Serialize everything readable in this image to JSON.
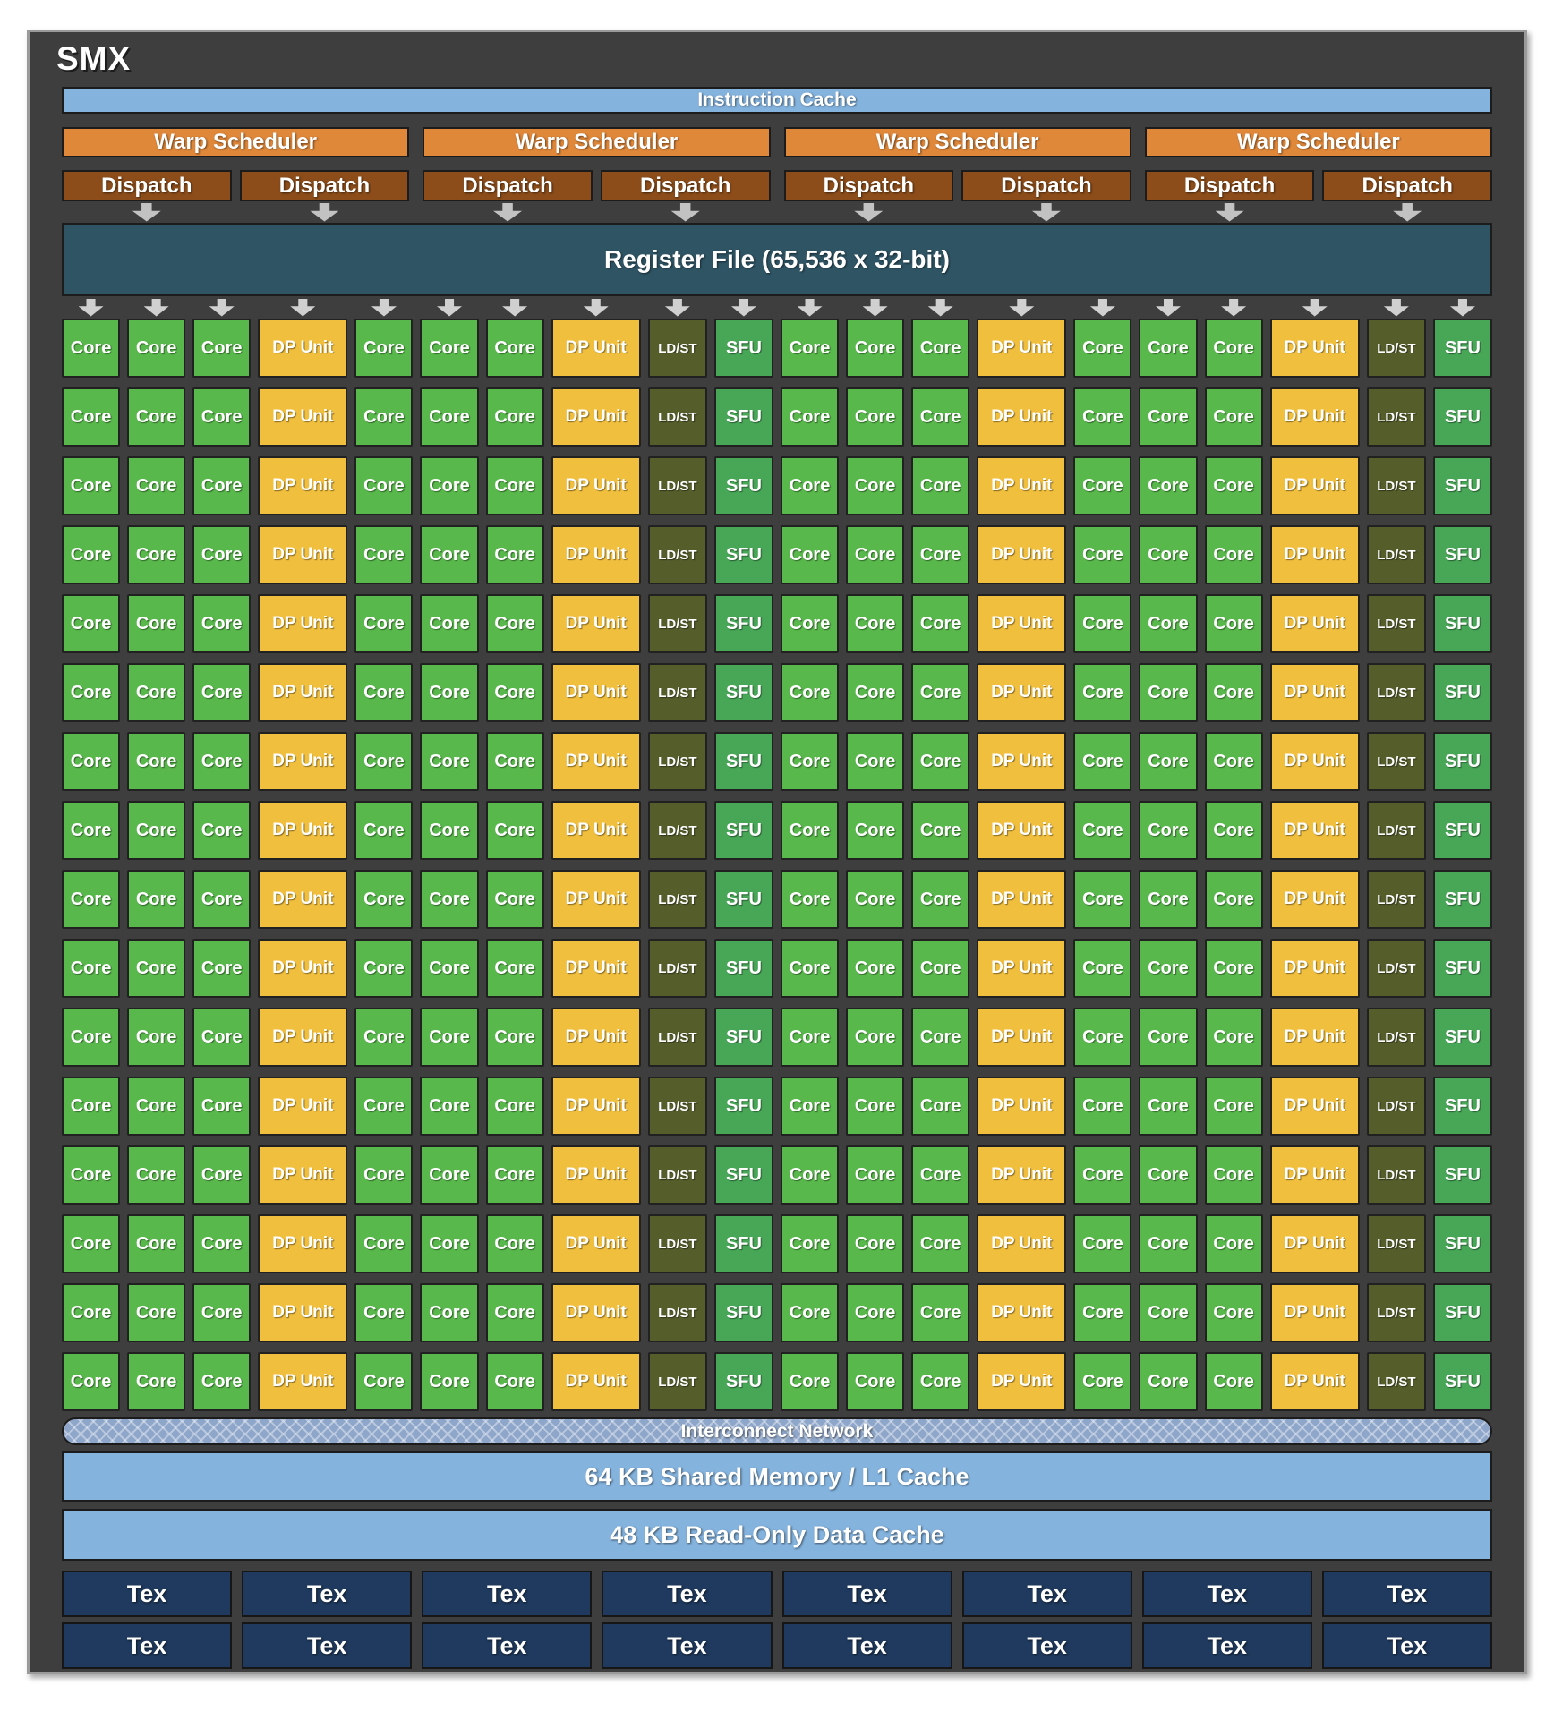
{
  "title": "SMX",
  "colors": {
    "panel_bg": "#3e3e3e",
    "bar_blue": "#84b3de",
    "warp": "#e0883a",
    "dispatch": "#8c4d1a",
    "register_file": "#2f5565",
    "core": "#58b84b",
    "dp_unit": "#f1bf3e",
    "ld_st": "#555e2b",
    "sfu": "#47a757",
    "interconnect": "#8ea6c9",
    "tex": "#1f3a5e"
  },
  "instruction_cache": {
    "label": "Instruction Cache"
  },
  "schedulers": [
    {
      "label": "Warp Scheduler",
      "dispatch_units": [
        "Dispatch",
        "Dispatch"
      ]
    },
    {
      "label": "Warp Scheduler",
      "dispatch_units": [
        "Dispatch",
        "Dispatch"
      ]
    },
    {
      "label": "Warp Scheduler",
      "dispatch_units": [
        "Dispatch",
        "Dispatch"
      ]
    },
    {
      "label": "Warp Scheduler",
      "dispatch_units": [
        "Dispatch",
        "Dispatch"
      ]
    }
  ],
  "register_file": {
    "label": "Register File (65,536 x 32-bit)"
  },
  "exec_grid": {
    "rows": 16,
    "columns": [
      {
        "type": "core",
        "label": "Core"
      },
      {
        "type": "core",
        "label": "Core"
      },
      {
        "type": "core",
        "label": "Core"
      },
      {
        "type": "dp",
        "label": "DP Unit"
      },
      {
        "type": "core",
        "label": "Core"
      },
      {
        "type": "core",
        "label": "Core"
      },
      {
        "type": "core",
        "label": "Core"
      },
      {
        "type": "dp",
        "label": "DP Unit"
      },
      {
        "type": "ldst",
        "label": "LD/ST"
      },
      {
        "type": "sfu",
        "label": "SFU"
      },
      {
        "type": "core",
        "label": "Core"
      },
      {
        "type": "core",
        "label": "Core"
      },
      {
        "type": "core",
        "label": "Core"
      },
      {
        "type": "dp",
        "label": "DP Unit"
      },
      {
        "type": "core",
        "label": "Core"
      },
      {
        "type": "core",
        "label": "Core"
      },
      {
        "type": "core",
        "label": "Core"
      },
      {
        "type": "dp",
        "label": "DP Unit"
      },
      {
        "type": "ldst",
        "label": "LD/ST"
      },
      {
        "type": "sfu",
        "label": "SFU"
      }
    ]
  },
  "interconnect": {
    "label": "Interconnect Network"
  },
  "shared_memory": {
    "label": "64 KB Shared Memory / L1 Cache"
  },
  "readonly_cache": {
    "label": "48 KB Read-Only Data Cache"
  },
  "tex_units": {
    "rows": 2,
    "cols": 8,
    "label": "Tex"
  }
}
